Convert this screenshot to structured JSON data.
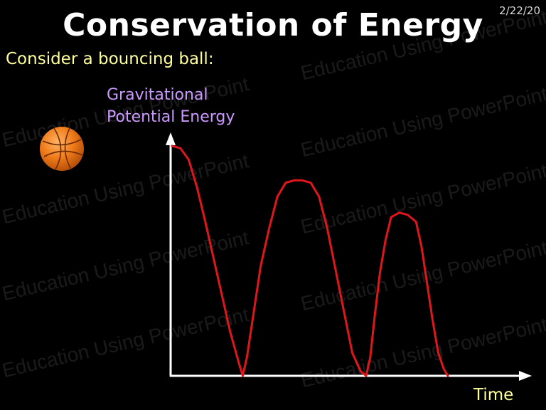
{
  "header": {
    "title": "Conservation of Energy",
    "date": "2/22/20",
    "subtitle": "Consider a bouncing ball:"
  },
  "watermark_text": "Education Using PowerPoint",
  "ball_icon": "basketball-icon",
  "colors": {
    "background": "#000000",
    "title": "#ffffff",
    "subtitle": "#ffff99",
    "ylabel": "#cc99ff",
    "curve": "#e0161b",
    "axes": "#ffffff",
    "ball": "#f07c1a"
  },
  "chart_data": {
    "type": "line",
    "ylabel_line1": "Gravitational",
    "ylabel_line2": "Potential Energy",
    "xlabel": "Time",
    "grid": false,
    "xlim": [
      0,
      100
    ],
    "ylim": [
      0,
      100
    ],
    "series": [
      {
        "x": [
          0,
          3,
          6,
          9,
          12,
          15,
          18,
          21,
          24,
          25.5,
          27,
          29,
          32,
          35,
          38,
          41,
          44,
          47,
          50,
          53,
          56,
          59,
          62,
          65,
          68,
          70,
          71.5,
          73,
          75,
          77,
          79,
          82,
          85,
          88,
          90,
          92,
          94,
          96,
          98,
          99.5
        ],
        "y": [
          100,
          99,
          94,
          82,
          67,
          51,
          35,
          19,
          6,
          0,
          8,
          24,
          48,
          64,
          78,
          84,
          85,
          85,
          84,
          78,
          64,
          46,
          28,
          10,
          2,
          0,
          8,
          25,
          45,
          59,
          69,
          71,
          70,
          67,
          56,
          40,
          24,
          10,
          3,
          0
        ]
      }
    ]
  }
}
